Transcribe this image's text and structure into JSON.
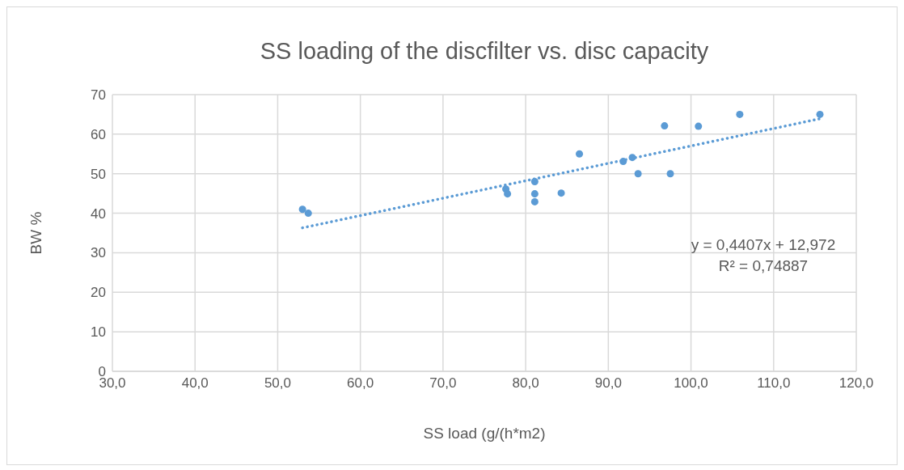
{
  "chart_data": {
    "type": "scatter",
    "title": "SS loading of the discfilter vs. disc capacity",
    "xlabel": "SS load (g/(h*m2)",
    "ylabel": "BW %",
    "xlim": [
      30,
      120
    ],
    "ylim": [
      0,
      70
    ],
    "xticks": [
      {
        "value": 30,
        "label": "30,0"
      },
      {
        "value": 40,
        "label": "40,0"
      },
      {
        "value": 50,
        "label": "50,0"
      },
      {
        "value": 60,
        "label": "60,0"
      },
      {
        "value": 70,
        "label": "70,0"
      },
      {
        "value": 80,
        "label": "80,0"
      },
      {
        "value": 90,
        "label": "90,0"
      },
      {
        "value": 100,
        "label": "100,0"
      },
      {
        "value": 110,
        "label": "110,0"
      },
      {
        "value": 120,
        "label": "120,0"
      }
    ],
    "yticks": [
      0,
      10,
      20,
      30,
      40,
      50,
      60,
      70
    ],
    "grid": true,
    "series": [
      {
        "color": "#5b9bd5",
        "marker": "circle",
        "x": [
          53.0,
          53.7,
          77.6,
          77.8,
          81.1,
          81.1,
          81.1,
          84.3,
          86.5,
          91.8,
          92.9,
          93.6,
          97.5,
          96.8,
          100.9,
          105.9,
          115.6
        ],
        "values": [
          41.0,
          40.0,
          46.1,
          44.9,
          48.0,
          44.9,
          42.9,
          45.1,
          55.0,
          53.1,
          54.1,
          50.0,
          50.0,
          62.1,
          62.0,
          65.0,
          65.0
        ]
      },
      {
        "type": "line",
        "color": "#5b9bd5",
        "line_style": "dotted",
        "marker": "none",
        "x": [
          53.0,
          115.6
        ],
        "values": [
          36.3,
          63.9
        ]
      }
    ],
    "annotations": [
      "y = 0,4407x + 12,972",
      "R² = 0,74887"
    ]
  }
}
